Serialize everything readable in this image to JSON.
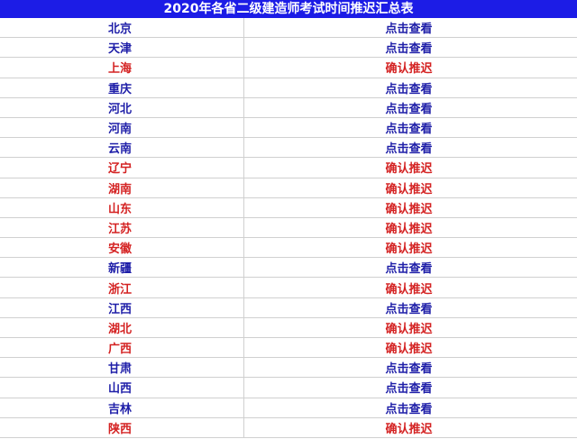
{
  "title": "2020年各省二级建造师考试时间推迟汇总表",
  "colors": {
    "header": "#1c1ce6",
    "view": "#1e1ea8",
    "postponed": "#d42222"
  },
  "rows": [
    {
      "province": "北京",
      "status": "点击查看",
      "type": "view"
    },
    {
      "province": "天津",
      "status": "点击查看",
      "type": "view"
    },
    {
      "province": "上海",
      "status": "确认推迟",
      "type": "postponed"
    },
    {
      "province": "重庆",
      "status": "点击查看",
      "type": "view"
    },
    {
      "province": "河北",
      "status": "点击查看",
      "type": "view"
    },
    {
      "province": "河南",
      "status": "点击查看",
      "type": "view"
    },
    {
      "province": "云南",
      "status": "点击查看",
      "type": "view"
    },
    {
      "province": "辽宁",
      "status": "确认推迟",
      "type": "postponed"
    },
    {
      "province": "湖南",
      "status": "确认推迟",
      "type": "postponed"
    },
    {
      "province": "山东",
      "status": "确认推迟",
      "type": "postponed"
    },
    {
      "province": "江苏",
      "status": "确认推迟",
      "type": "postponed"
    },
    {
      "province": "安徽",
      "status": "确认推迟",
      "type": "postponed"
    },
    {
      "province": "新疆",
      "status": "点击查看",
      "type": "view"
    },
    {
      "province": "浙江",
      "status": "确认推迟",
      "type": "postponed"
    },
    {
      "province": "江西",
      "status": "点击查看",
      "type": "view"
    },
    {
      "province": "湖北",
      "status": "确认推迟",
      "type": "postponed"
    },
    {
      "province": "广西",
      "status": "确认推迟",
      "type": "postponed"
    },
    {
      "province": "甘肃",
      "status": "点击查看",
      "type": "view"
    },
    {
      "province": "山西",
      "status": "点击查看",
      "type": "view"
    },
    {
      "province": "吉林",
      "status": "点击查看",
      "type": "view"
    },
    {
      "province": "陕西",
      "status": "确认推迟",
      "type": "postponed"
    }
  ]
}
